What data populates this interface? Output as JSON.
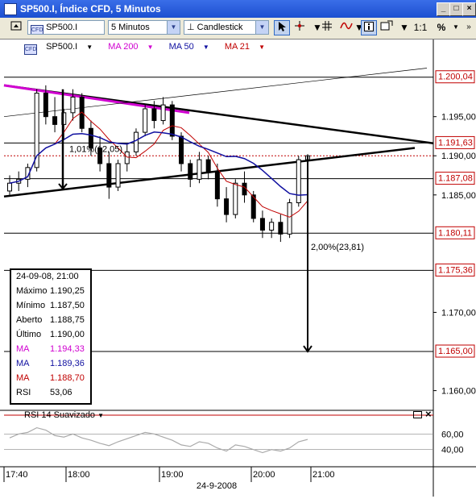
{
  "window": {
    "title": "SP500.I, Índice CFD, 5 Minutos",
    "minimize": "_",
    "maximize": "□",
    "close": "×"
  },
  "toolbar": {
    "symbol": "SP500.I",
    "interval": "5 Minutos",
    "chart_type": "Candlestick",
    "ratio": "1:1",
    "percent": "%"
  },
  "legend": {
    "symbol": "SP500.I",
    "ma200": "MA 200",
    "ma50": "MA 50",
    "ma21": "MA 21",
    "colors": {
      "ma200": "#d000d0",
      "ma50": "#1010a0",
      "ma21": "#c00000"
    }
  },
  "axis": {
    "price_labels": [
      "1.195,00",
      "1.190,00",
      "1.185,00",
      "1.170,00",
      "1.160,00"
    ],
    "highlight_labels": [
      "1.200,04",
      "1.191,63",
      "1.187,08",
      "1.180,11",
      "1.175,36",
      "1.165,00"
    ],
    "rsi_labels": [
      "60,00",
      "40,00"
    ],
    "time_labels": [
      "17:40",
      "18:00",
      "19:00",
      "20:00",
      "21:00"
    ],
    "date": "24-9-2008"
  },
  "annotations": {
    "left_move": "1,01%(12,05)",
    "right_move": "2,00%(23,81)"
  },
  "infobox": {
    "date": "24-09-08, 21:00",
    "rows": [
      {
        "label": "Máximo",
        "value": "1.190,25",
        "color": "#000000"
      },
      {
        "label": "Mínimo",
        "value": "1.187,50",
        "color": "#000000"
      },
      {
        "label": "Aberto",
        "value": "1.188,75",
        "color": "#000000"
      },
      {
        "label": "Último",
        "value": "1.190,00",
        "color": "#000000"
      },
      {
        "label": "MA",
        "value": "1.194,33",
        "color": "#d000d0"
      },
      {
        "label": "MA",
        "value": "1.189,36",
        "color": "#1010a0"
      },
      {
        "label": "MA",
        "value": "1.188,70",
        "color": "#c00000"
      },
      {
        "label": "RSI",
        "value": "53,06",
        "color": "#000000"
      }
    ]
  },
  "rsi_panel": {
    "label": "RSI 14 Suavizado"
  },
  "chart_data": {
    "type": "candlestick",
    "title": "SP500.I, Índice CFD, 5 Minutos",
    "x_start": "17:40",
    "x_end": "21:00",
    "ylim": [
      1.158,
      1.203
    ],
    "candles": [
      {
        "t": "17:40",
        "o": 1.1855,
        "h": 1.1875,
        "l": 1.185,
        "c": 1.1865
      },
      {
        "t": "17:45",
        "o": 1.1865,
        "h": 1.188,
        "l": 1.1855,
        "c": 1.187
      },
      {
        "t": "17:50",
        "o": 1.187,
        "h": 1.189,
        "l": 1.186,
        "c": 1.1885
      },
      {
        "t": "17:55",
        "o": 1.1885,
        "h": 1.1985,
        "l": 1.188,
        "c": 1.198
      },
      {
        "t": "18:00",
        "o": 1.198,
        "h": 1.199,
        "l": 1.194,
        "c": 1.195
      },
      {
        "t": "18:05",
        "o": 1.195,
        "h": 1.1975,
        "l": 1.193,
        "c": 1.194
      },
      {
        "t": "18:10",
        "o": 1.194,
        "h": 1.196,
        "l": 1.192,
        "c": 1.1955
      },
      {
        "t": "18:15",
        "o": 1.1955,
        "h": 1.1985,
        "l": 1.1945,
        "c": 1.1975
      },
      {
        "t": "18:20",
        "o": 1.1975,
        "h": 1.198,
        "l": 1.193,
        "c": 1.1935
      },
      {
        "t": "18:25",
        "o": 1.1935,
        "h": 1.1945,
        "l": 1.19,
        "c": 1.191
      },
      {
        "t": "18:30",
        "o": 1.191,
        "h": 1.1925,
        "l": 1.188,
        "c": 1.189
      },
      {
        "t": "18:35",
        "o": 1.189,
        "h": 1.1905,
        "l": 1.1845,
        "c": 1.186
      },
      {
        "t": "18:40",
        "o": 1.186,
        "h": 1.1895,
        "l": 1.1855,
        "c": 1.189
      },
      {
        "t": "18:45",
        "o": 1.189,
        "h": 1.1915,
        "l": 1.188,
        "c": 1.1905
      },
      {
        "t": "18:50",
        "o": 1.1905,
        "h": 1.1935,
        "l": 1.19,
        "c": 1.193
      },
      {
        "t": "18:55",
        "o": 1.193,
        "h": 1.1965,
        "l": 1.1925,
        "c": 1.196
      },
      {
        "t": "19:00",
        "o": 1.196,
        "h": 1.197,
        "l": 1.1935,
        "c": 1.1945
      },
      {
        "t": "19:05",
        "o": 1.1945,
        "h": 1.1975,
        "l": 1.194,
        "c": 1.1965
      },
      {
        "t": "19:10",
        "o": 1.1965,
        "h": 1.197,
        "l": 1.192,
        "c": 1.1925
      },
      {
        "t": "19:15",
        "o": 1.1925,
        "h": 1.193,
        "l": 1.188,
        "c": 1.189
      },
      {
        "t": "19:20",
        "o": 1.189,
        "h": 1.1895,
        "l": 1.186,
        "c": 1.187
      },
      {
        "t": "19:25",
        "o": 1.187,
        "h": 1.1905,
        "l": 1.1865,
        "c": 1.1895
      },
      {
        "t": "19:30",
        "o": 1.1895,
        "h": 1.19,
        "l": 1.187,
        "c": 1.188
      },
      {
        "t": "19:35",
        "o": 1.188,
        "h": 1.189,
        "l": 1.1835,
        "c": 1.1845
      },
      {
        "t": "19:40",
        "o": 1.1845,
        "h": 1.186,
        "l": 1.1815,
        "c": 1.1825
      },
      {
        "t": "19:45",
        "o": 1.1825,
        "h": 1.187,
        "l": 1.182,
        "c": 1.1865
      },
      {
        "t": "19:50",
        "o": 1.1865,
        "h": 1.188,
        "l": 1.184,
        "c": 1.185
      },
      {
        "t": "19:55",
        "o": 1.185,
        "h": 1.1855,
        "l": 1.1815,
        "c": 1.182
      },
      {
        "t": "20:00",
        "o": 1.182,
        "h": 1.183,
        "l": 1.1795,
        "c": 1.1805
      },
      {
        "t": "20:05",
        "o": 1.1805,
        "h": 1.182,
        "l": 1.1795,
        "c": 1.1815
      },
      {
        "t": "20:10",
        "o": 1.1815,
        "h": 1.1825,
        "l": 1.179,
        "c": 1.18
      },
      {
        "t": "20:15",
        "o": 1.18,
        "h": 1.1845,
        "l": 1.1795,
        "c": 1.184
      },
      {
        "t": "20:20",
        "o": 1.184,
        "h": 1.19,
        "l": 1.1835,
        "c": 1.1895
      },
      {
        "t": "20:25",
        "o": 1.1895,
        "h": 1.1902,
        "l": 1.1875,
        "c": 1.19
      }
    ],
    "levels": [
      1.20004,
      1.19163,
      1.18708,
      1.18011,
      1.17536,
      1.165
    ],
    "dotted_level": 1.19,
    "rsi": [
      55,
      60,
      62,
      68,
      65,
      58,
      56,
      60,
      55,
      52,
      48,
      45,
      50,
      54,
      58,
      62,
      60,
      56,
      52,
      46,
      44,
      50,
      48,
      42,
      38,
      46,
      44,
      40,
      36,
      40,
      38,
      42,
      50,
      53
    ]
  }
}
